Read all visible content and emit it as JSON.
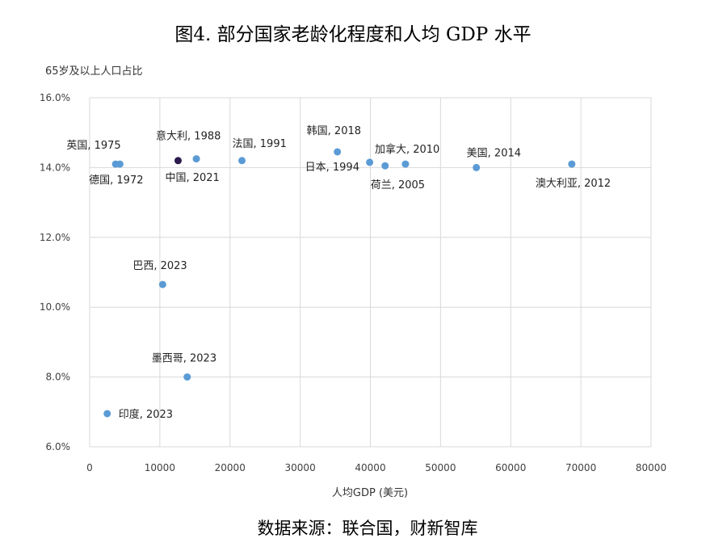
{
  "chart_data": {
    "type": "scatter",
    "title": "图4. 部分国家老龄化程度和人均 GDP 水平",
    "xlabel": "人均GDP (美元)",
    "ylabel": "65岁及以上人口占比",
    "xlim": [
      0,
      80000
    ],
    "ylim": [
      6.0,
      16.0
    ],
    "x_ticks": [
      "0",
      "10000",
      "20000",
      "30000",
      "40000",
      "50000",
      "60000",
      "70000",
      "80000"
    ],
    "y_ticks": [
      "6.0%",
      "8.0%",
      "10.0%",
      "12.0%",
      "14.0%",
      "16.0%"
    ],
    "grid": true,
    "points": [
      {
        "label": "英国, 1975",
        "x": 4300,
        "y": 14.1,
        "color": "#5b9bd5"
      },
      {
        "label": "德国, 1972",
        "x": 3700,
        "y": 14.1,
        "color": "#5b9bd5"
      },
      {
        "label": "意大利, 1988",
        "x": 15200,
        "y": 14.25,
        "color": "#5b9bd5"
      },
      {
        "label": "中国, 2021",
        "x": 12600,
        "y": 14.2,
        "color": "#2d1b4e"
      },
      {
        "label": "法国, 1991",
        "x": 21700,
        "y": 14.2,
        "color": "#5b9bd5"
      },
      {
        "label": "韩国, 2018",
        "x": 35300,
        "y": 14.45,
        "color": "#5b9bd5"
      },
      {
        "label": "日本, 1994",
        "x": 39900,
        "y": 14.15,
        "color": "#5b9bd5"
      },
      {
        "label": "荷兰, 2005",
        "x": 42100,
        "y": 14.05,
        "color": "#5b9bd5"
      },
      {
        "label": "加拿大, 2010",
        "x": 45000,
        "y": 14.1,
        "color": "#5b9bd5"
      },
      {
        "label": "美国, 2014",
        "x": 55100,
        "y": 14.0,
        "color": "#5b9bd5"
      },
      {
        "label": "澳大利亚, 2012",
        "x": 68700,
        "y": 14.1,
        "color": "#5b9bd5"
      },
      {
        "label": "巴西, 2023",
        "x": 10400,
        "y": 10.65,
        "color": "#5b9bd5"
      },
      {
        "label": "墨西哥, 2023",
        "x": 13900,
        "y": 8.0,
        "color": "#5b9bd5"
      },
      {
        "label": "印度, 2023",
        "x": 2500,
        "y": 6.95,
        "color": "#5b9bd5"
      }
    ],
    "source": "数据来源：联合国，财新智库"
  }
}
